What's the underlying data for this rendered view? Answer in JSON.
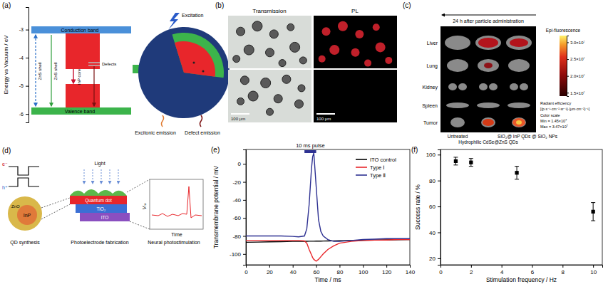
{
  "panel_a": {
    "label": "(a)",
    "y_label": "Energy vs Vacuum / eV",
    "ylim": [
      -6.3,
      -2.2
    ],
    "yticks": [
      -6,
      -5,
      -4,
      -3
    ],
    "texts": {
      "conduction_band": "Conduction band",
      "valence_band": "Valence band",
      "zns_shell_left": "ZnS shell",
      "zns_shell_right": "ZnS shell",
      "inp_core": "InP core",
      "defects": "Defects",
      "excitation": "Excitation",
      "excitonic_emission": "Excitonic emission",
      "defect_emission": "Defect emission"
    }
  },
  "panel_b": {
    "label": "(b)",
    "columns": [
      "Transmission",
      "PL"
    ],
    "scale_bars": [
      "100 μm",
      "100 μm"
    ]
  },
  "panel_c": {
    "label": "(c)",
    "caption": "24 h after particle administration",
    "organs": [
      "Liver",
      "Lung",
      "Kidney",
      "Spleen",
      "Tumor"
    ],
    "groups": [
      "Untreated",
      "Hydrophilic CdSe@ZnS QDs",
      "SiO₂@ InP QDs @ SiO₂ NPs"
    ],
    "colorbar": {
      "title": "Epi-fluorescence",
      "range": [
        14000000,
        32000000
      ],
      "ticks": [
        {
          "value": 15000000,
          "label": "1.5×10⁷"
        },
        {
          "value": 20000000,
          "label": "2.0×10⁷"
        },
        {
          "value": 25000000,
          "label": "2.5×10⁷"
        },
        {
          "value": 30000000,
          "label": "3.0×10⁷"
        }
      ],
      "unit_title": "Radiant efficiency",
      "unit": "[(p·s⁻¹·cm⁻²·sr⁻¹)·(μm·cm⁻²)⁻¹]",
      "scale_title": "Color scale",
      "min": "Min = 1.45×10⁷",
      "max": "Max = 3.47×10⁷"
    }
  },
  "panel_d": {
    "label": "(d)",
    "texts": {
      "electron": "e⁻",
      "hole": "h⁺",
      "shell": "ZnO",
      "core": "InP",
      "light": "Light",
      "quantum_dot": "Quantum dot",
      "tio2": "TiO₂",
      "ito": "ITO",
      "vm": "Vₘ",
      "time": "Time"
    },
    "steps": [
      "QD synthesis",
      "Photoelectrode fabrication",
      "Neural photostimulation"
    ]
  },
  "chart_data": [
    {
      "type": "line",
      "panel_label": "(e)",
      "x_label": "Time / ms",
      "y_label": "Transmembrane potential / mV",
      "x": [
        0,
        10,
        20,
        30,
        40,
        45,
        50,
        52,
        54,
        56,
        57,
        58,
        60,
        62,
        64,
        66,
        70,
        75,
        80,
        90,
        100,
        110,
        120,
        130,
        140
      ],
      "series": [
        {
          "name": "ITO control",
          "color": "#000000",
          "values": [
            -87,
            -86.8,
            -86.5,
            -86.3,
            -86,
            -86,
            -85.9,
            -85.9,
            -85.8,
            -85.8,
            -85.8,
            -85.8,
            -85.7,
            -85.7,
            -85.7,
            -85.6,
            -85.5,
            -85.4,
            -85.3,
            -85,
            -84.8,
            -84.6,
            -84.4,
            -84.2,
            -84
          ]
        },
        {
          "name": "Type Ⅰ",
          "color": "#e8262b",
          "values": [
            -85,
            -85,
            -85,
            -85,
            -85,
            -85,
            -85.5,
            -88,
            -95,
            -101,
            -104,
            -106,
            -108,
            -106,
            -103,
            -100,
            -95,
            -91,
            -88,
            -86,
            -85,
            -84.5,
            -84.5,
            -84,
            -84
          ]
        },
        {
          "name": "Type Ⅱ",
          "color": "#2e3192",
          "values": [
            -80,
            -80,
            -80,
            -80,
            -80.5,
            -81,
            -80,
            -72,
            -45,
            -5,
            8,
            12,
            -25,
            -62,
            -75,
            -80,
            -84,
            -86,
            -86,
            -85,
            -84,
            -83.5,
            -83,
            -83,
            -83
          ]
        }
      ],
      "xlim": [
        0,
        140
      ],
      "ylim": [
        -112,
        16
      ],
      "xticks": [
        0,
        20,
        40,
        60,
        80,
        100,
        120,
        140
      ],
      "yticks": [
        -100,
        -80,
        -60,
        -40,
        -20,
        0
      ],
      "legend": "upper right",
      "annotations": [
        {
          "text": "10 ms pulse",
          "x": [
            50,
            60
          ]
        }
      ]
    },
    {
      "type": "scatter",
      "panel_label": "(f)",
      "x_label": "Stimulation frequency / Hz",
      "y_label": "Success rate / %",
      "x": [
        1,
        2,
        5,
        10
      ],
      "values": [
        95,
        94,
        86,
        56
      ],
      "errors": [
        3,
        3,
        5,
        7
      ],
      "xlim": [
        0,
        10.6
      ],
      "ylim": [
        15,
        104
      ],
      "xticks": [
        0,
        2,
        4,
        6,
        8,
        10
      ],
      "yticks": [
        20,
        40,
        60,
        80,
        100
      ],
      "marker": "square",
      "color": "#000000"
    }
  ]
}
